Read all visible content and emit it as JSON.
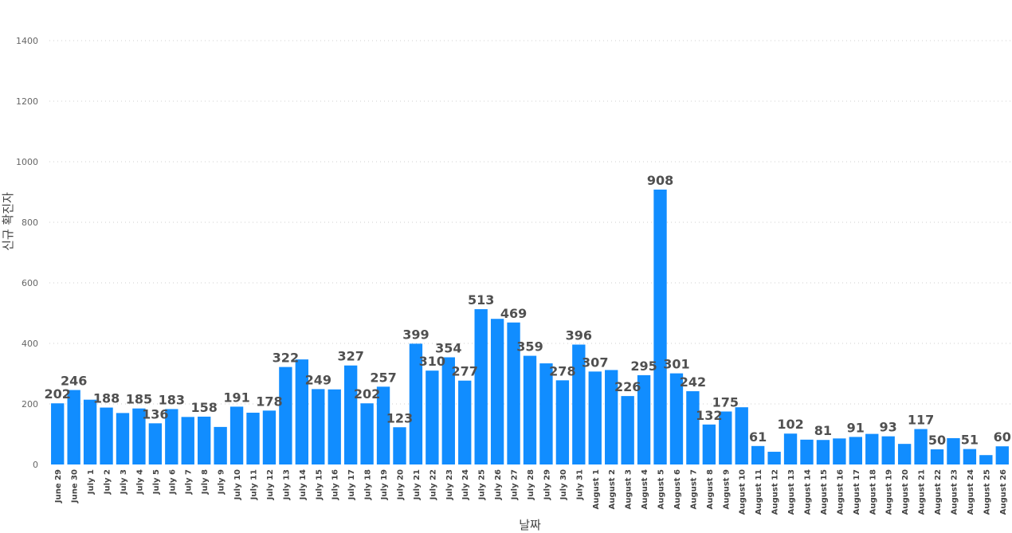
{
  "chart_data": {
    "type": "bar",
    "xlabel": "날짜",
    "ylabel": "신규 확진자",
    "ylim": [
      0,
      1400
    ],
    "yticks": [
      0,
      200,
      400,
      600,
      800,
      1000,
      1200,
      1400
    ],
    "grid": true,
    "bar_color": "#118DFF",
    "categories": [
      "June 29",
      "June 30",
      "July 1",
      "July 2",
      "July 3",
      "July 4",
      "July 5",
      "July 6",
      "July 7",
      "July 8",
      "July 9",
      "July 10",
      "July 11",
      "July 12",
      "July 13",
      "July 14",
      "July 15",
      "July 16",
      "July 17",
      "July 18",
      "July 19",
      "July 20",
      "July 21",
      "July 22",
      "July 23",
      "July 24",
      "July 25",
      "July 26",
      "July 27",
      "July 28",
      "July 29",
      "July 30",
      "July 31",
      "August 1",
      "August 2",
      "August 3",
      "August 4",
      "August 5",
      "August 6",
      "August 7",
      "August 8",
      "August 9",
      "August 10",
      "August 11",
      "August 12",
      "August 13",
      "August 14",
      "August 15",
      "August 16",
      "August 17",
      "August 18",
      "August 19",
      "August 20",
      "August 21",
      "August 22",
      "August 23",
      "August 24",
      "August 25",
      "August 26"
    ],
    "values": [
      202,
      246,
      214,
      188,
      170,
      185,
      136,
      183,
      157,
      158,
      124,
      191,
      171,
      178,
      322,
      347,
      249,
      248,
      327,
      202,
      257,
      123,
      399,
      310,
      354,
      277,
      513,
      481,
      469,
      359,
      334,
      278,
      396,
      307,
      312,
      226,
      295,
      908,
      301,
      242,
      132,
      175,
      189,
      61,
      42,
      102,
      82,
      81,
      86,
      91,
      101,
      93,
      68,
      117,
      50,
      87,
      51,
      31,
      60
    ],
    "data_labels": [
      {
        "index": 0,
        "text": "202"
      },
      {
        "index": 1,
        "text": "246"
      },
      {
        "index": 3,
        "text": "188"
      },
      {
        "index": 5,
        "text": "185"
      },
      {
        "index": 6,
        "text": "136"
      },
      {
        "index": 7,
        "text": "183"
      },
      {
        "index": 9,
        "text": "158"
      },
      {
        "index": 11,
        "text": "191"
      },
      {
        "index": 13,
        "text": "178"
      },
      {
        "index": 14,
        "text": "322"
      },
      {
        "index": 16,
        "text": "249"
      },
      {
        "index": 18,
        "text": "327"
      },
      {
        "index": 19,
        "text": "202"
      },
      {
        "index": 20,
        "text": "257"
      },
      {
        "index": 21,
        "text": "123"
      },
      {
        "index": 22,
        "text": "399"
      },
      {
        "index": 23,
        "text": "310"
      },
      {
        "index": 24,
        "text": "354"
      },
      {
        "index": 25,
        "text": "277"
      },
      {
        "index": 26,
        "text": "513"
      },
      {
        "index": 28,
        "text": "469"
      },
      {
        "index": 29,
        "text": "359"
      },
      {
        "index": 31,
        "text": "278"
      },
      {
        "index": 32,
        "text": "396"
      },
      {
        "index": 33,
        "text": "307"
      },
      {
        "index": 35,
        "text": "226"
      },
      {
        "index": 36,
        "text": "295"
      },
      {
        "index": 37,
        "text": "908"
      },
      {
        "index": 38,
        "text": "301"
      },
      {
        "index": 39,
        "text": "242"
      },
      {
        "index": 40,
        "text": "132"
      },
      {
        "index": 41,
        "text": "175"
      },
      {
        "index": 43,
        "text": "61"
      },
      {
        "index": 45,
        "text": "102"
      },
      {
        "index": 47,
        "text": "81"
      },
      {
        "index": 49,
        "text": "91"
      },
      {
        "index": 51,
        "text": "93"
      },
      {
        "index": 53,
        "text": "117"
      },
      {
        "index": 54,
        "text": "50"
      },
      {
        "index": 56,
        "text": "51"
      },
      {
        "index": 58,
        "text": "60"
      }
    ]
  }
}
